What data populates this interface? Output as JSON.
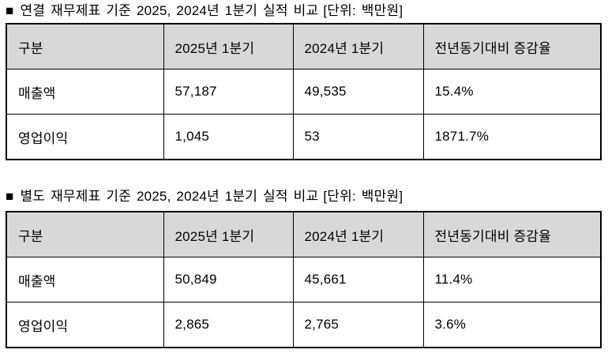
{
  "colors": {
    "background": "#ffffff",
    "text": "#000000",
    "border": "#000000",
    "header_bg": "#d8d8d8"
  },
  "tables": [
    {
      "name": "consolidated",
      "bullet": "■",
      "title": "연결 재무제표 기준 2025, 2024년 1분기 실적 비교",
      "unit": "[단위: 백만원]",
      "columns": [
        "구분",
        "2025년 1분기",
        "2024년 1분기",
        "전년동기대비 증감율"
      ],
      "rows": [
        {
          "label": "매출액",
          "values": [
            "57,187",
            "49,535",
            "15.4%"
          ]
        },
        {
          "label": "영업이익",
          "values": [
            "1,045",
            "53",
            "1871.7%"
          ]
        }
      ]
    },
    {
      "name": "separate",
      "bullet": "■",
      "title": "별도 재무제표 기준 2025, 2024년 1분기 실적 비교",
      "unit": "[단위: 백만원]",
      "columns": [
        "구분",
        "2025년 1분기",
        "2024년 1분기",
        "전년동기대비 증감율"
      ],
      "rows": [
        {
          "label": "매출액",
          "values": [
            "50,849",
            "45,661",
            "11.4%"
          ]
        },
        {
          "label": "영업이익",
          "values": [
            "2,865",
            "2,765",
            "3.6%"
          ]
        }
      ]
    }
  ]
}
